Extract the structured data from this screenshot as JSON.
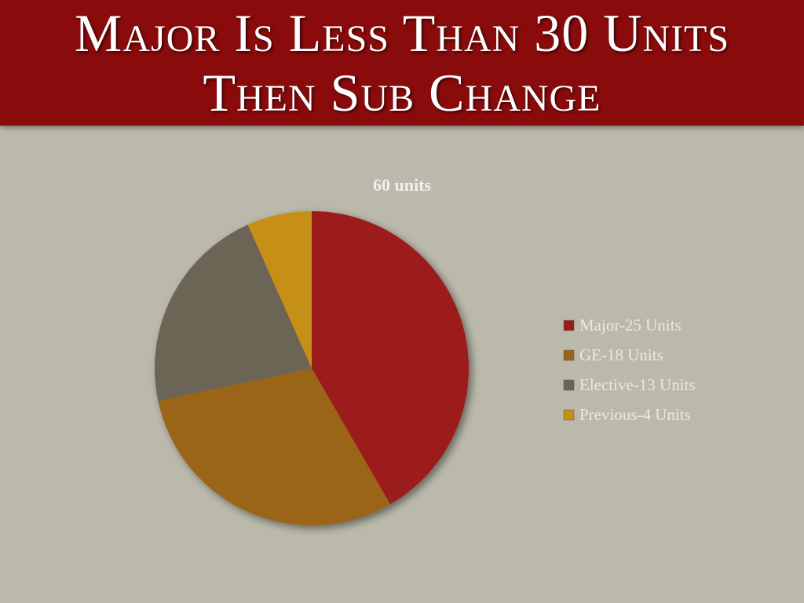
{
  "header": {
    "title": "Major Is Less Than 30 Units Then Sub Change"
  },
  "chart_data": {
    "type": "pie",
    "title": "60 units",
    "categories": [
      "Major-25 Units",
      "GE-18 Units",
      "Elective-13 Units",
      "Previous-4 Units"
    ],
    "values": [
      25,
      18,
      13,
      4
    ],
    "colors": [
      "#9c1a1b",
      "#9a6516",
      "#6c6556",
      "#c68f12"
    ],
    "legend": "right"
  }
}
